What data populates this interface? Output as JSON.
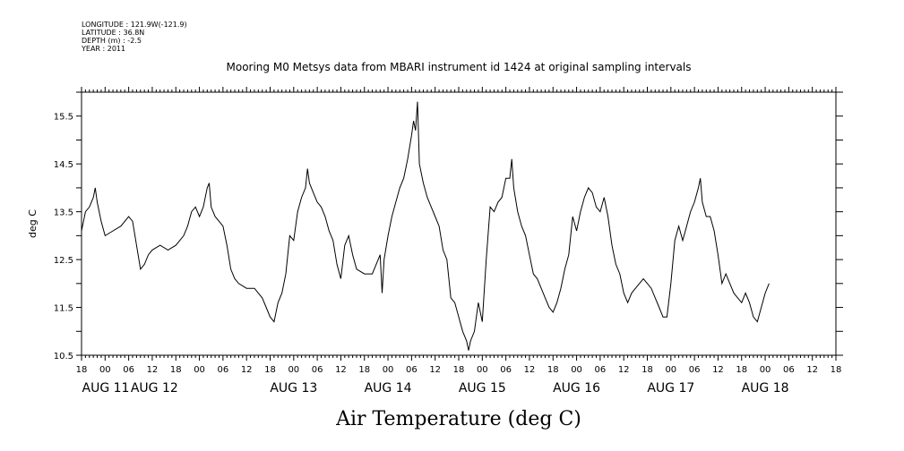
{
  "metadata": {
    "longitude": "LONGITUDE : 121.9W(-121.9)",
    "latitude": "LATITUDE : 36.8N",
    "depth": "DEPTH (m) : -2.5",
    "year": "YEAR : 2011"
  },
  "chart_data": {
    "type": "line",
    "title": "Mooring M0 Metsys data from MBARI instrument id 1424 at original sampling intervals",
    "xlabel": "Air Temperature (deg C)",
    "ylabel": "deg C",
    "ylim": [
      10.5,
      16.0
    ],
    "yticks": [
      "10.5",
      "11.5",
      "12.5",
      "13.5",
      "14.5",
      "15.5"
    ],
    "xlim_hours": [
      -6,
      186
    ],
    "hour_ticks": [
      "18",
      "00",
      "06",
      "12",
      "18",
      "00",
      "06",
      "12",
      "18",
      "00",
      "06",
      "12",
      "18",
      "00",
      "06",
      "12",
      "18",
      "00",
      "06",
      "12",
      "18",
      "00",
      "06",
      "12",
      "18",
      "00",
      "06",
      "12",
      "18",
      "00",
      "06",
      "12",
      "18"
    ],
    "date_labels": [
      "AUG 11",
      "AUG 12",
      "AUG 13",
      "AUG 14",
      "AUG 15",
      "AUG 16",
      "AUG 17",
      "AUG 18"
    ],
    "grid": false,
    "series": [
      {
        "points": [
          [
            -6,
            13.1
          ],
          [
            -5.5,
            13.3
          ],
          [
            -5,
            13.5
          ],
          [
            -4,
            13.6
          ],
          [
            -3,
            13.8
          ],
          [
            -2.5,
            14.0
          ],
          [
            -2,
            13.7
          ],
          [
            -1,
            13.3
          ],
          [
            0,
            13.0
          ],
          [
            2,
            13.1
          ],
          [
            4,
            13.2
          ],
          [
            6,
            13.4
          ],
          [
            7,
            13.3
          ],
          [
            8,
            12.8
          ],
          [
            9,
            12.3
          ],
          [
            10,
            12.4
          ],
          [
            11,
            12.6
          ],
          [
            12,
            12.7
          ],
          [
            14,
            12.8
          ],
          [
            16,
            12.7
          ],
          [
            18,
            12.8
          ],
          [
            20,
            13.0
          ],
          [
            21,
            13.2
          ],
          [
            22,
            13.5
          ],
          [
            23,
            13.6
          ],
          [
            24,
            13.4
          ],
          [
            25,
            13.6
          ],
          [
            26,
            14.0
          ],
          [
            26.5,
            14.1
          ],
          [
            27,
            13.6
          ],
          [
            28,
            13.4
          ],
          [
            30,
            13.2
          ],
          [
            31,
            12.8
          ],
          [
            32,
            12.3
          ],
          [
            33,
            12.1
          ],
          [
            34,
            12.0
          ],
          [
            36,
            11.9
          ],
          [
            38,
            11.9
          ],
          [
            40,
            11.7
          ],
          [
            41,
            11.5
          ],
          [
            42,
            11.3
          ],
          [
            43,
            11.2
          ],
          [
            44,
            11.6
          ],
          [
            45,
            11.8
          ],
          [
            46,
            12.2
          ],
          [
            47,
            13.0
          ],
          [
            48,
            12.9
          ],
          [
            49,
            13.5
          ],
          [
            50,
            13.8
          ],
          [
            51,
            14.0
          ],
          [
            51.5,
            14.4
          ],
          [
            52,
            14.1
          ],
          [
            53,
            13.9
          ],
          [
            54,
            13.7
          ],
          [
            55,
            13.6
          ],
          [
            56,
            13.4
          ],
          [
            57,
            13.1
          ],
          [
            58,
            12.9
          ],
          [
            59,
            12.4
          ],
          [
            60,
            12.1
          ],
          [
            61,
            12.8
          ],
          [
            62,
            13.0
          ],
          [
            63,
            12.6
          ],
          [
            64,
            12.3
          ],
          [
            66,
            12.2
          ],
          [
            68,
            12.2
          ],
          [
            69,
            12.4
          ],
          [
            70,
            12.6
          ],
          [
            70.5,
            11.8
          ],
          [
            71,
            12.5
          ],
          [
            72,
            13.0
          ],
          [
            73,
            13.4
          ],
          [
            74,
            13.7
          ],
          [
            75,
            14.0
          ],
          [
            76,
            14.2
          ],
          [
            77,
            14.6
          ],
          [
            78,
            15.1
          ],
          [
            78.5,
            15.4
          ],
          [
            79,
            15.2
          ],
          [
            79.5,
            15.8
          ],
          [
            80,
            14.5
          ],
          [
            81,
            14.1
          ],
          [
            82,
            13.8
          ],
          [
            83,
            13.6
          ],
          [
            84,
            13.4
          ],
          [
            85,
            13.2
          ],
          [
            86,
            12.7
          ],
          [
            87,
            12.5
          ],
          [
            88,
            11.7
          ],
          [
            89,
            11.6
          ],
          [
            90,
            11.3
          ],
          [
            91,
            11.0
          ],
          [
            92,
            10.8
          ],
          [
            92.5,
            10.6
          ],
          [
            93,
            10.8
          ],
          [
            94,
            11.0
          ],
          [
            95,
            11.6
          ],
          [
            96,
            11.2
          ],
          [
            97,
            12.5
          ],
          [
            98,
            13.6
          ],
          [
            99,
            13.5
          ],
          [
            100,
            13.7
          ],
          [
            101,
            13.8
          ],
          [
            102,
            14.2
          ],
          [
            103,
            14.2
          ],
          [
            103.5,
            14.6
          ],
          [
            104,
            14.0
          ],
          [
            105,
            13.5
          ],
          [
            106,
            13.2
          ],
          [
            107,
            13.0
          ],
          [
            108,
            12.6
          ],
          [
            109,
            12.2
          ],
          [
            110,
            12.1
          ],
          [
            111,
            11.9
          ],
          [
            112,
            11.7
          ],
          [
            113,
            11.5
          ],
          [
            114,
            11.4
          ],
          [
            115,
            11.6
          ],
          [
            116,
            11.9
          ],
          [
            117,
            12.3
          ],
          [
            118,
            12.6
          ],
          [
            119,
            13.4
          ],
          [
            120,
            13.1
          ],
          [
            121,
            13.5
          ],
          [
            122,
            13.8
          ],
          [
            123,
            14.0
          ],
          [
            124,
            13.9
          ],
          [
            125,
            13.6
          ],
          [
            126,
            13.5
          ],
          [
            127,
            13.8
          ],
          [
            128,
            13.4
          ],
          [
            129,
            12.8
          ],
          [
            130,
            12.4
          ],
          [
            131,
            12.2
          ],
          [
            132,
            11.8
          ],
          [
            133,
            11.6
          ],
          [
            134,
            11.8
          ],
          [
            135,
            11.9
          ],
          [
            136,
            12.0
          ],
          [
            137,
            12.1
          ],
          [
            138,
            12.0
          ],
          [
            139,
            11.9
          ],
          [
            140,
            11.7
          ],
          [
            141,
            11.5
          ],
          [
            142,
            11.3
          ],
          [
            143,
            11.3
          ],
          [
            144,
            12.0
          ],
          [
            145,
            12.9
          ],
          [
            146,
            13.2
          ],
          [
            147,
            12.9
          ],
          [
            148,
            13.2
          ],
          [
            149,
            13.5
          ],
          [
            150,
            13.7
          ],
          [
            151,
            14.0
          ],
          [
            151.5,
            14.2
          ],
          [
            152,
            13.7
          ],
          [
            153,
            13.4
          ],
          [
            154,
            13.4
          ],
          [
            155,
            13.1
          ],
          [
            156,
            12.6
          ],
          [
            157,
            12.0
          ],
          [
            158,
            12.2
          ],
          [
            159,
            12.0
          ],
          [
            160,
            11.8
          ],
          [
            161,
            11.7
          ],
          [
            162,
            11.6
          ],
          [
            163,
            11.8
          ],
          [
            164,
            11.6
          ],
          [
            165,
            11.3
          ],
          [
            166,
            11.2
          ],
          [
            167,
            11.5
          ],
          [
            168,
            11.8
          ],
          [
            169,
            12.0
          ]
        ]
      }
    ]
  }
}
